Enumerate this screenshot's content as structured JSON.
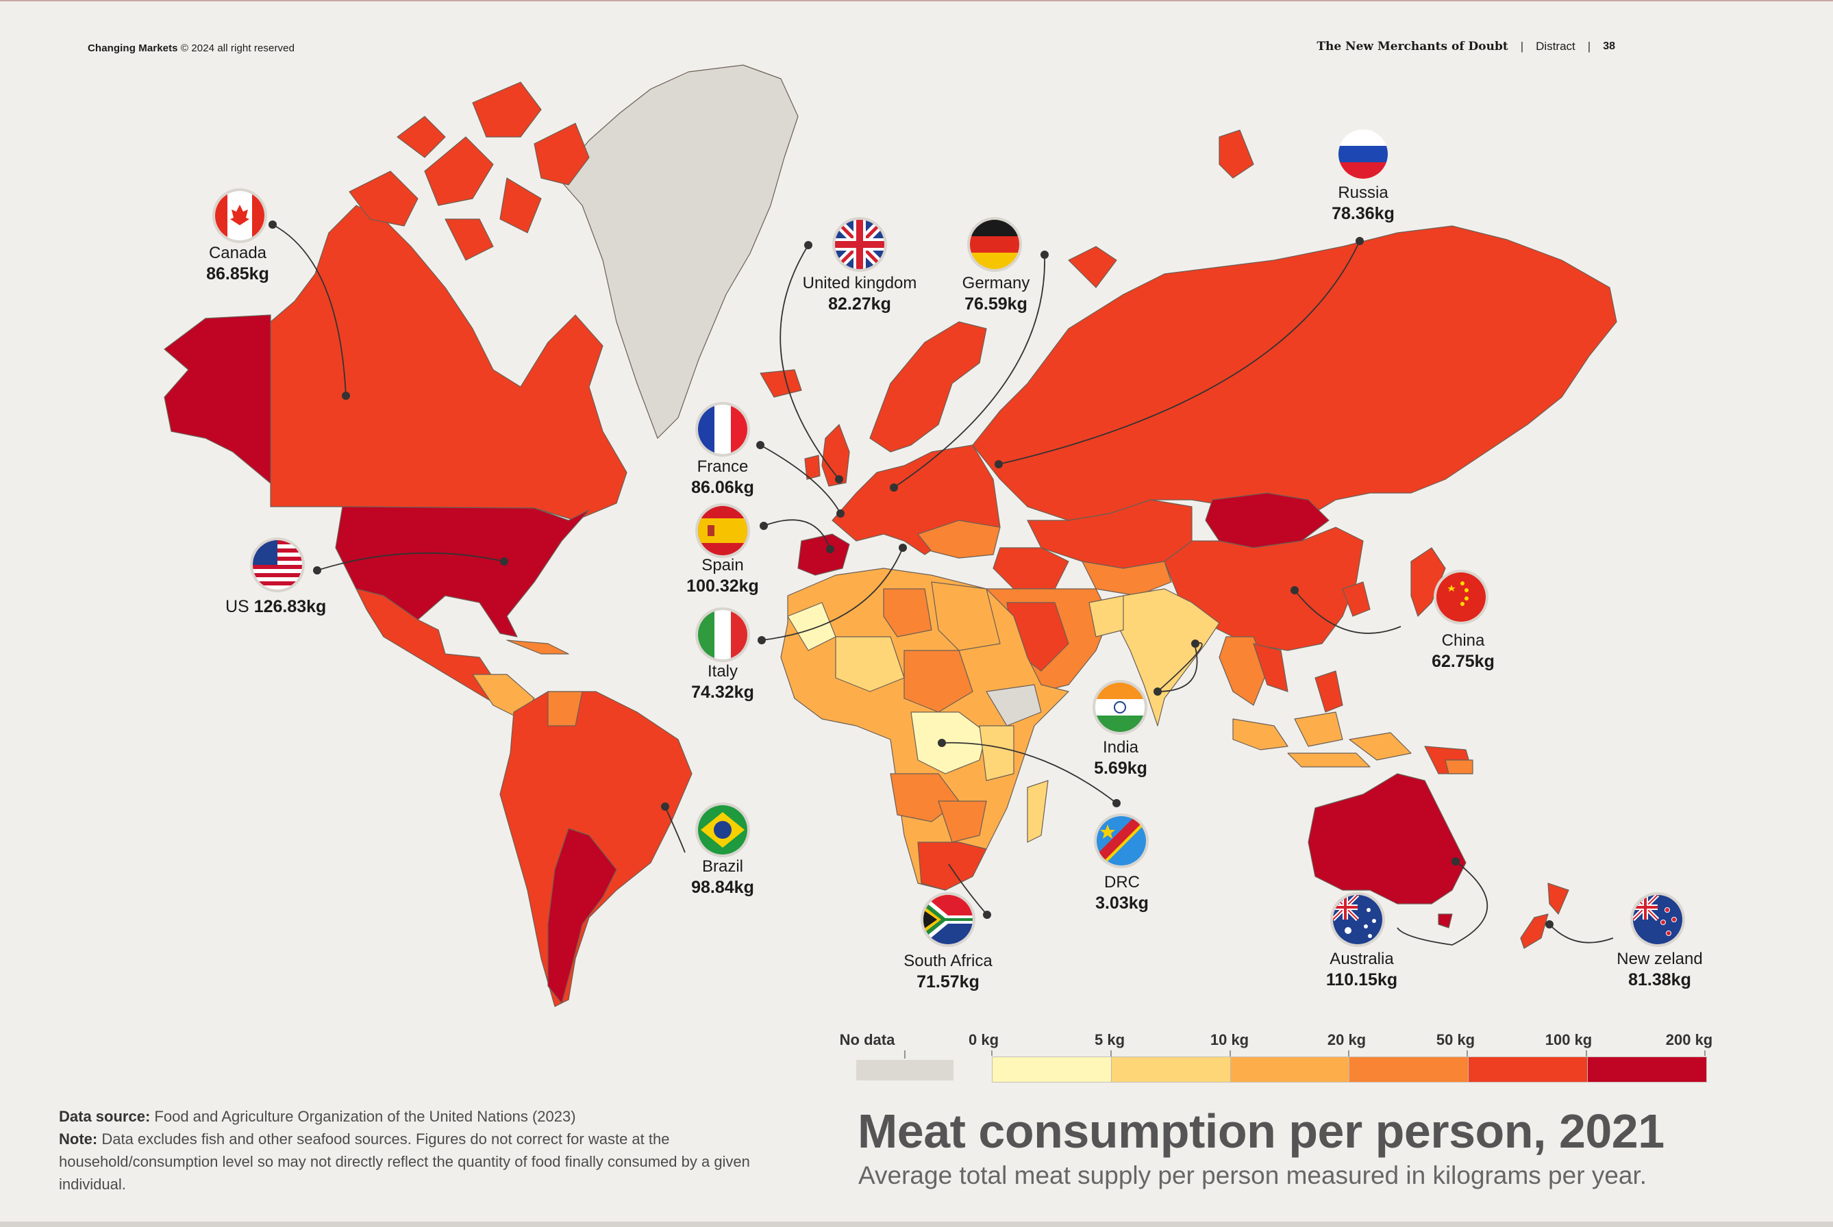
{
  "header": {
    "left_bold": "Changing Markets",
    "left_rest": "© 2024 all right reserved",
    "publication": "The New Merchants of Doubt",
    "section": "Distract",
    "page_number": "38"
  },
  "colors": {
    "background": "#f1efeb",
    "no_data": "#dcd9d3",
    "scale": [
      "#fff7b8",
      "#ffd677",
      "#fdae4b",
      "#f88434",
      "#ee3f22",
      "#c00424"
    ]
  },
  "legend": {
    "no_data_label": "No data",
    "ticks": [
      "0 kg",
      "5 kg",
      "10 kg",
      "20 kg",
      "50 kg",
      "100 kg",
      "200 kg"
    ]
  },
  "countries": [
    {
      "name": "Canada",
      "value": "86.85kg",
      "flag": "canada-flag-icon"
    },
    {
      "name": "United kingdom",
      "value": "82.27kg",
      "flag": "uk-flag-icon"
    },
    {
      "name": "Germany",
      "value": "76.59kg",
      "flag": "germany-flag-icon"
    },
    {
      "name": "Russia",
      "value": "78.36kg",
      "flag": "russia-flag-icon"
    },
    {
      "name": "France",
      "value": "86.06kg",
      "flag": "france-flag-icon"
    },
    {
      "name": "Spain",
      "value": "100.32kg",
      "flag": "spain-flag-icon"
    },
    {
      "name": "US",
      "value": "126.83kg",
      "flag": "us-flag-icon"
    },
    {
      "name": "Italy",
      "value": "74.32kg",
      "flag": "italy-flag-icon"
    },
    {
      "name": "China",
      "value": "62.75kg",
      "flag": "china-flag-icon"
    },
    {
      "name": "India",
      "value": "5.69kg",
      "flag": "india-flag-icon"
    },
    {
      "name": "Brazil",
      "value": "98.84kg",
      "flag": "brazil-flag-icon"
    },
    {
      "name": "DRC",
      "value": "3.03kg",
      "flag": "drc-flag-icon"
    },
    {
      "name": "South Africa",
      "value": "71.57kg",
      "flag": "south-africa-flag-icon"
    },
    {
      "name": "Australia",
      "value": "110.15kg",
      "flag": "australia-flag-icon"
    },
    {
      "name": "New zeland",
      "value": "81.38kg",
      "flag": "new-zealand-flag-icon"
    }
  ],
  "footer": {
    "source_label": "Data source:",
    "source_text": "Food and Agriculture Organization of the United Nations (2023)",
    "note_label": "Note:",
    "note_text": "Data excludes fish and other seafood sources. Figures do not correct for waste at the household/consumption level so may not directly reflect the quantity of food finally consumed by a given individual."
  },
  "title": "Meat consumption per person, 2021",
  "subtitle": "Average total meat supply per person measured in kilograms per year."
}
